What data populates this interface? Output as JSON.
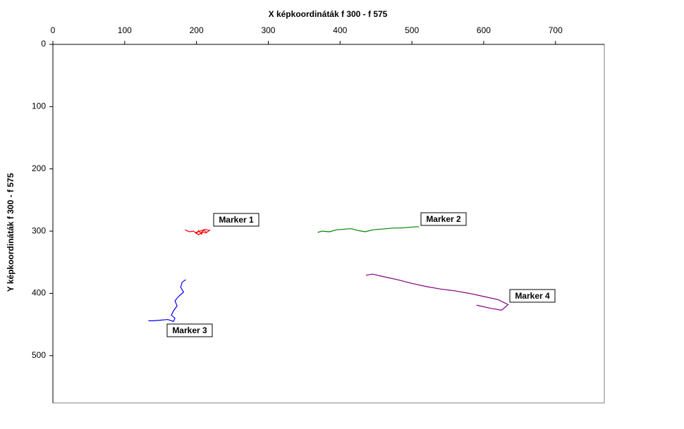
{
  "chart_data": {
    "type": "line",
    "x_label": "X képkoordináták f 300 - f 575",
    "y_label": "Y képkoordináták f 300 - f 575",
    "x_axis_position": "top",
    "y_inverted": true,
    "xlim": [
      0,
      768
    ],
    "xticks": [
      0,
      100,
      200,
      300,
      400,
      500,
      600,
      700
    ],
    "ylim": [
      0,
      576
    ],
    "yticks": [
      0,
      100,
      200,
      300,
      400,
      500
    ],
    "series": [
      {
        "name": "Marker 1",
        "color": "#ff0000",
        "x": [
          184,
          190,
          196,
          200,
          203,
          207,
          210,
          214,
          218,
          212,
          205,
          199,
          203,
          208,
          213,
          219
        ],
        "y": [
          298,
          301,
          300,
          304,
          299,
          305,
          298,
          302,
          299,
          297,
          300,
          302,
          306,
          301,
          303,
          298
        ]
      },
      {
        "name": "Marker 2",
        "color": "#008000",
        "x": [
          369,
          375,
          385,
          395,
          405,
          415,
          425,
          435,
          445,
          455,
          465,
          475,
          485,
          495,
          505,
          510
        ],
        "y": [
          302,
          300,
          301,
          298,
          297,
          296,
          299,
          301,
          298,
          297,
          296,
          295,
          295,
          294,
          293,
          293
        ]
      },
      {
        "name": "Marker 3",
        "color": "#0000ff",
        "x": [
          185,
          180,
          178,
          182,
          175,
          170,
          173,
          168,
          165,
          170,
          168,
          160,
          150,
          140,
          133
        ],
        "y": [
          378,
          382,
          390,
          398,
          405,
          412,
          420,
          428,
          435,
          440,
          445,
          442,
          443,
          444,
          444
        ]
      },
      {
        "name": "Marker 4",
        "color": "#800080",
        "x": [
          436,
          445,
          460,
          480,
          500,
          520,
          540,
          560,
          580,
          600,
          620,
          634,
          625,
          610,
          590
        ],
        "y": [
          371,
          369,
          373,
          378,
          384,
          389,
          393,
          396,
          400,
          405,
          410,
          418,
          427,
          424,
          419
        ]
      }
    ]
  }
}
